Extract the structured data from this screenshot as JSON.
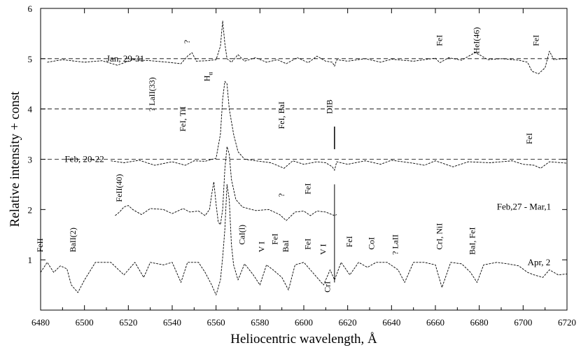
{
  "chart_data": {
    "type": "line",
    "xlabel": "Heliocentric  wavelength, Å",
    "ylabel": "Relative intensity + const",
    "xlim": [
      6480,
      6720
    ],
    "ylim": [
      0,
      6
    ],
    "xticks": [
      6480,
      6500,
      6520,
      6540,
      6560,
      6580,
      6600,
      6620,
      6640,
      6660,
      6680,
      6700,
      6720
    ],
    "yticks": [
      1,
      2,
      3,
      4,
      5,
      6
    ],
    "grid": false,
    "series": [
      {
        "name": "Jan, 29-31",
        "baseline": 5,
        "x_range": [
          6483,
          6720
        ],
        "points": [
          [
            6483,
            4.93
          ],
          [
            6490,
            4.98
          ],
          [
            6500,
            4.93
          ],
          [
            6508,
            4.96
          ],
          [
            6515,
            4.87
          ],
          [
            6522,
            4.98
          ],
          [
            6530,
            4.96
          ],
          [
            6538,
            4.93
          ],
          [
            6544,
            4.9
          ],
          [
            6547,
            5.05
          ],
          [
            6549,
            5.12
          ],
          [
            6551,
            4.95
          ],
          [
            6556,
            4.96
          ],
          [
            6560,
            4.98
          ],
          [
            6562,
            5.25
          ],
          [
            6563,
            5.75
          ],
          [
            6564,
            5.3
          ],
          [
            6565,
            5.0
          ],
          [
            6567,
            4.93
          ],
          [
            6570,
            5.08
          ],
          [
            6573,
            4.95
          ],
          [
            6578,
            5.02
          ],
          [
            6583,
            4.93
          ],
          [
            6588,
            4.98
          ],
          [
            6592,
            4.9
          ],
          [
            6597,
            5.02
          ],
          [
            6602,
            4.92
          ],
          [
            6606,
            5.05
          ],
          [
            6610,
            4.95
          ],
          [
            6613,
            4.93
          ],
          [
            6614,
            4.85
          ],
          [
            6615,
            4.98
          ],
          [
            6620,
            4.95
          ],
          [
            6628,
            5.0
          ],
          [
            6635,
            4.93
          ],
          [
            6640,
            4.99
          ],
          [
            6650,
            4.95
          ],
          [
            6660,
            5.01
          ],
          [
            6662,
            4.92
          ],
          [
            6666,
            5.02
          ],
          [
            6672,
            4.97
          ],
          [
            6678,
            5.12
          ],
          [
            6680,
            5.08
          ],
          [
            6684,
            4.98
          ],
          [
            6690,
            5.0
          ],
          [
            6698,
            4.97
          ],
          [
            6702,
            4.93
          ],
          [
            6704,
            4.75
          ],
          [
            6707,
            4.7
          ],
          [
            6710,
            4.82
          ],
          [
            6712,
            5.15
          ],
          [
            6714,
            4.98
          ],
          [
            6718,
            5.0
          ],
          [
            6720,
            5.0
          ]
        ]
      },
      {
        "name": "Feb, 20-22",
        "baseline": 3,
        "x_range": [
          6512,
          6720
        ],
        "points": [
          [
            6512,
            2.97
          ],
          [
            6518,
            2.93
          ],
          [
            6525,
            2.98
          ],
          [
            6532,
            2.88
          ],
          [
            6540,
            2.95
          ],
          [
            6546,
            2.88
          ],
          [
            6550,
            2.97
          ],
          [
            6555,
            2.96
          ],
          [
            6560,
            3.02
          ],
          [
            6562,
            3.5
          ],
          [
            6563,
            4.2
          ],
          [
            6564,
            4.55
          ],
          [
            6565,
            4.5
          ],
          [
            6566,
            4.0
          ],
          [
            6568,
            3.5
          ],
          [
            6570,
            3.15
          ],
          [
            6573,
            3.0
          ],
          [
            6578,
            2.97
          ],
          [
            6585,
            2.93
          ],
          [
            6591,
            2.82
          ],
          [
            6595,
            2.97
          ],
          [
            6600,
            2.9
          ],
          [
            6606,
            2.95
          ],
          [
            6610,
            2.93
          ],
          [
            6613,
            2.85
          ],
          [
            6614,
            2.78
          ],
          [
            6615,
            2.95
          ],
          [
            6620,
            2.9
          ],
          [
            6628,
            2.97
          ],
          [
            6635,
            2.9
          ],
          [
            6640,
            2.98
          ],
          [
            6650,
            2.92
          ],
          [
            6655,
            2.88
          ],
          [
            6660,
            2.97
          ],
          [
            6668,
            2.85
          ],
          [
            6675,
            2.95
          ],
          [
            6685,
            2.93
          ],
          [
            6695,
            2.97
          ],
          [
            6700,
            2.9
          ],
          [
            6705,
            2.88
          ],
          [
            6708,
            2.82
          ],
          [
            6712,
            2.95
          ],
          [
            6720,
            2.92
          ]
        ]
      },
      {
        "name": "Feb,27 - Mar,1",
        "baseline": 2,
        "x_range": [
          6514,
          6615
        ],
        "points": [
          [
            6514,
            1.88
          ],
          [
            6516,
            1.95
          ],
          [
            6518,
            2.05
          ],
          [
            6520,
            2.08
          ],
          [
            6522,
            2.0
          ],
          [
            6526,
            1.9
          ],
          [
            6530,
            2.02
          ],
          [
            6536,
            2.0
          ],
          [
            6540,
            1.92
          ],
          [
            6545,
            2.02
          ],
          [
            6548,
            1.95
          ],
          [
            6552,
            1.97
          ],
          [
            6555,
            1.88
          ],
          [
            6557,
            2.0
          ],
          [
            6558,
            2.3
          ],
          [
            6559,
            2.55
          ],
          [
            6560,
            2.1
          ],
          [
            6561,
            1.75
          ],
          [
            6562,
            1.7
          ],
          [
            6563,
            2.0
          ],
          [
            6564,
            2.8
          ],
          [
            6565,
            3.25
          ],
          [
            6566,
            3.1
          ],
          [
            6567,
            2.6
          ],
          [
            6569,
            2.2
          ],
          [
            6572,
            2.05
          ],
          [
            6578,
            1.98
          ],
          [
            6584,
            2.0
          ],
          [
            6589,
            1.9
          ],
          [
            6592,
            1.78
          ],
          [
            6596,
            1.95
          ],
          [
            6600,
            1.97
          ],
          [
            6603,
            1.88
          ],
          [
            6606,
            1.97
          ],
          [
            6610,
            1.95
          ],
          [
            6614,
            1.88
          ],
          [
            6615,
            1.9
          ]
        ]
      },
      {
        "name": "Apr, 2",
        "baseline": 1,
        "x_range": [
          6480,
          6720
        ],
        "points": [
          [
            6480,
            0.75
          ],
          [
            6483,
            0.95
          ],
          [
            6486,
            0.75
          ],
          [
            6489,
            0.88
          ],
          [
            6492,
            0.82
          ],
          [
            6494,
            0.5
          ],
          [
            6497,
            0.35
          ],
          [
            6500,
            0.6
          ],
          [
            6505,
            0.95
          ],
          [
            6512,
            0.95
          ],
          [
            6518,
            0.7
          ],
          [
            6523,
            0.95
          ],
          [
            6527,
            0.65
          ],
          [
            6530,
            0.95
          ],
          [
            6536,
            0.9
          ],
          [
            6540,
            0.95
          ],
          [
            6544,
            0.55
          ],
          [
            6547,
            0.95
          ],
          [
            6552,
            0.95
          ],
          [
            6555,
            0.75
          ],
          [
            6558,
            0.5
          ],
          [
            6560,
            0.3
          ],
          [
            6562,
            0.6
          ],
          [
            6563,
            1.05
          ],
          [
            6564,
            1.6
          ],
          [
            6565,
            2.5
          ],
          [
            6566,
            2.2
          ],
          [
            6567,
            1.3
          ],
          [
            6568,
            0.9
          ],
          [
            6570,
            0.6
          ],
          [
            6573,
            0.92
          ],
          [
            6577,
            0.7
          ],
          [
            6580,
            0.5
          ],
          [
            6583,
            0.9
          ],
          [
            6586,
            0.8
          ],
          [
            6590,
            0.65
          ],
          [
            6593,
            0.4
          ],
          [
            6596,
            0.9
          ],
          [
            6600,
            0.95
          ],
          [
            6603,
            0.8
          ],
          [
            6606,
            0.65
          ],
          [
            6609,
            0.5
          ],
          [
            6612,
            0.8
          ],
          [
            6614,
            0.6
          ],
          [
            6617,
            0.95
          ],
          [
            6621,
            0.7
          ],
          [
            6625,
            0.95
          ],
          [
            6629,
            0.85
          ],
          [
            6633,
            0.95
          ],
          [
            6638,
            0.95
          ],
          [
            6643,
            0.8
          ],
          [
            6646,
            0.55
          ],
          [
            6650,
            0.95
          ],
          [
            6655,
            0.95
          ],
          [
            6660,
            0.9
          ],
          [
            6663,
            0.45
          ],
          [
            6667,
            0.95
          ],
          [
            6672,
            0.92
          ],
          [
            6676,
            0.75
          ],
          [
            6679,
            0.55
          ],
          [
            6682,
            0.9
          ],
          [
            6688,
            0.95
          ],
          [
            6693,
            0.92
          ],
          [
            6698,
            0.88
          ],
          [
            6702,
            0.75
          ],
          [
            6705,
            0.7
          ],
          [
            6709,
            0.65
          ],
          [
            6712,
            0.8
          ],
          [
            6716,
            0.7
          ],
          [
            6720,
            0.72
          ]
        ]
      }
    ],
    "reference_lines": [
      {
        "y": 5,
        "style": "dashed",
        "x_range": [
          6480,
          6720
        ]
      },
      {
        "y": 4,
        "style": "dashed",
        "x_range": [
          6480,
          6720
        ]
      },
      {
        "y": 3,
        "style": "dashed",
        "x_range": [
          6480,
          6720
        ]
      }
    ],
    "annotations": [
      {
        "text": "?",
        "x": 6548,
        "y": 5.3,
        "rotate": true
      },
      {
        "text": "FeI",
        "x": 6663,
        "y": 5.25,
        "rotate": true
      },
      {
        "text": "HeI(46)",
        "x": 6680,
        "y": 5.1,
        "rotate": true
      },
      {
        "text": "FeI",
        "x": 6707,
        "y": 5.25,
        "rotate": true
      },
      {
        "text": "H",
        "sub": "α",
        "x": 6557,
        "y": 4.55,
        "rotate": true
      },
      {
        "text": "? LaII(33)",
        "x": 6532,
        "y": 3.95,
        "rotate": true
      },
      {
        "text": "FeI, TiI",
        "x": 6546,
        "y": 3.55,
        "rotate": true
      },
      {
        "text": "FeI, BaI",
        "x": 6591,
        "y": 3.6,
        "rotate": true
      },
      {
        "text": "DIB",
        "x": 6613,
        "y": 3.9,
        "rotate": true
      },
      {
        "text": "FeI",
        "x": 6704,
        "y": 3.3,
        "rotate": true
      },
      {
        "text": "FeII(40)",
        "x": 6517,
        "y": 2.15,
        "rotate": true
      },
      {
        "text": "?",
        "x": 6591,
        "y": 2.25,
        "rotate": true
      },
      {
        "text": "FeI",
        "x": 6603,
        "y": 2.3,
        "rotate": true
      },
      {
        "text": "FeII",
        "x": 6481,
        "y": 1.15,
        "rotate": true
      },
      {
        "text": "BaII(2)",
        "x": 6496,
        "y": 1.15,
        "rotate": true
      },
      {
        "text": "CaI(l)",
        "x": 6573,
        "y": 1.3,
        "rotate": true
      },
      {
        "text": "V I",
        "x": 6582,
        "y": 1.15,
        "rotate": true
      },
      {
        "text": "FeI",
        "x": 6588,
        "y": 1.3,
        "rotate": true
      },
      {
        "text": "BaI",
        "x": 6593,
        "y": 1.15,
        "rotate": true
      },
      {
        "text": "FeI",
        "x": 6603,
        "y": 1.2,
        "rotate": true
      },
      {
        "text": "V I",
        "x": 6610,
        "y": 1.1,
        "rotate": true
      },
      {
        "text": "CrI",
        "x": 6612,
        "y": 0.35,
        "rotate": true
      },
      {
        "text": "FeI",
        "x": 6622,
        "y": 1.25,
        "rotate": true
      },
      {
        "text": "CoI",
        "x": 6632,
        "y": 1.2,
        "rotate": true
      },
      {
        "text": "? LaII",
        "x": 6643,
        "y": 1.1,
        "rotate": true
      },
      {
        "text": "CrI, NiI",
        "x": 6663,
        "y": 1.2,
        "rotate": true
      },
      {
        "text": "BaI, FeI",
        "x": 6678,
        "y": 1.1,
        "rotate": true
      }
    ],
    "date_labels": [
      {
        "text": "Jan, 29-31",
        "x": 6510,
        "y": 5.0
      },
      {
        "text": "Feb, 20-22",
        "x": 6491,
        "y": 3.0
      },
      {
        "text": "Feb,27 - Mar,1",
        "x": 6688,
        "y": 2.05
      },
      {
        "text": "Apr, 2",
        "x": 6702,
        "y": 0.95
      }
    ]
  }
}
